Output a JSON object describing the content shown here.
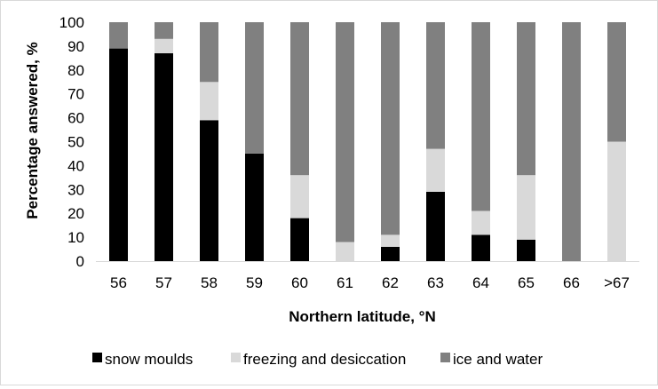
{
  "chart_data": {
    "type": "bar",
    "stacked": true,
    "xlabel": "Northern latitude, °N",
    "ylabel": "Percentage answered, %",
    "ylim": [
      0,
      100
    ],
    "yticks": [
      0,
      10,
      20,
      30,
      40,
      50,
      60,
      70,
      80,
      90,
      100
    ],
    "grid": false,
    "legend_position": "bottom",
    "categories": [
      "56",
      "57",
      "58",
      "59",
      "60",
      "61",
      "62",
      "63",
      "64",
      "65",
      "66",
      ">67"
    ],
    "series": [
      {
        "name": "snow moulds",
        "color": "#000000",
        "values": [
          89,
          87,
          59,
          45,
          18,
          0,
          6,
          29,
          11,
          9,
          0,
          0
        ]
      },
      {
        "name": "freezing and desiccation",
        "color": "#d9d9d9",
        "values": [
          0,
          6,
          16,
          0,
          18,
          8,
          5,
          18,
          10,
          27,
          0,
          50
        ]
      },
      {
        "name": "ice and water",
        "color": "#808080",
        "values": [
          11,
          7,
          25,
          55,
          64,
          92,
          89,
          53,
          79,
          64,
          100,
          50
        ]
      }
    ]
  }
}
